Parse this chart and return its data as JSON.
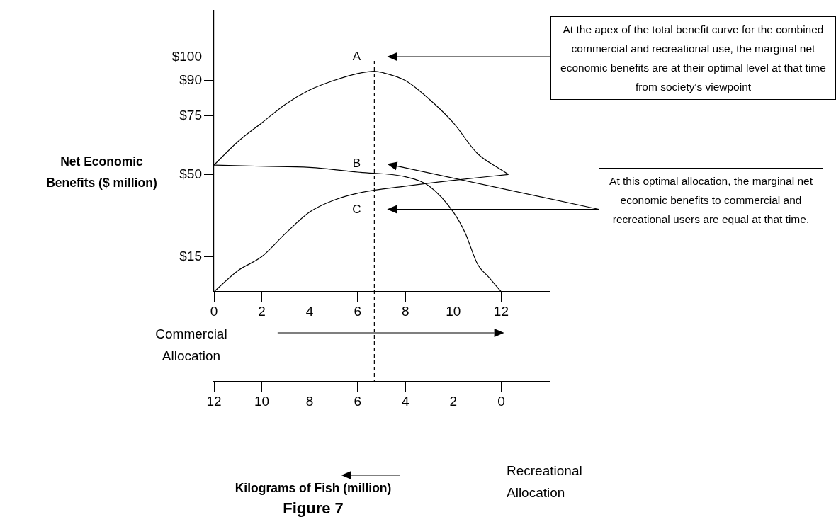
{
  "chart_data": {
    "type": "line",
    "title": "Figure 7",
    "xlabel": "Commercial Allocation",
    "x2label": "Recreational Allocation",
    "ylabel": "Net Economic Benefits ($ million)",
    "xlim": [
      0,
      14
    ],
    "xticks": [
      0,
      2,
      4,
      6,
      8,
      10,
      12
    ],
    "x2lim": [
      12,
      -2
    ],
    "x2ticks": [
      12,
      10,
      8,
      6,
      4,
      2,
      0
    ],
    "ylim": [
      0,
      120
    ],
    "yticks": [
      {
        "value": 15,
        "label": "$15"
      },
      {
        "value": 50,
        "label": "$50"
      },
      {
        "value": 75,
        "label": "$75"
      },
      {
        "value": 90,
        "label": "$90"
      },
      {
        "value": 100,
        "label": "$100"
      }
    ],
    "grid": false,
    "marker": "none",
    "line_style": "solid",
    "series": [
      {
        "color": "#000000",
        "x": [
          0,
          1,
          2,
          3,
          4,
          5,
          6,
          6.7,
          7,
          8,
          9,
          10,
          11,
          12,
          12.3
        ],
        "values": [
          54,
          64,
          72,
          80,
          86,
          90,
          93,
          94,
          93.5,
          90,
          82,
          72,
          59,
          52,
          50
        ]
      },
      {
        "color": "#000000",
        "x": [
          0,
          2,
          4,
          6,
          8,
          9,
          10,
          10.5,
          11,
          11.5,
          12
        ],
        "values": [
          54,
          53.5,
          53,
          51,
          49,
          45,
          34,
          25,
          12,
          6,
          0
        ]
      },
      {
        "color": "#000000",
        "x": [
          0,
          1,
          2,
          3,
          4,
          5,
          6,
          8,
          10,
          12.3
        ],
        "values": [
          0,
          9,
          15,
          25,
          34,
          39,
          42,
          45,
          47.5,
          50
        ]
      }
    ],
    "ref_lines": [
      {
        "axis": "x",
        "value": 6.7,
        "line_style": "dashed",
        "color": "#000000"
      }
    ],
    "annotations": [
      "At the apex of the total benefit curve for the combined commercial and recreational use, the marginal net economic benefits are at their optimal level at that time from society's viewpoint",
      "At this optimal allocation, the marginal net economic benefits to commercial and recreational users are equal at that time.",
      "A",
      "B",
      "C",
      "Kilograms of Fish (million)"
    ]
  }
}
